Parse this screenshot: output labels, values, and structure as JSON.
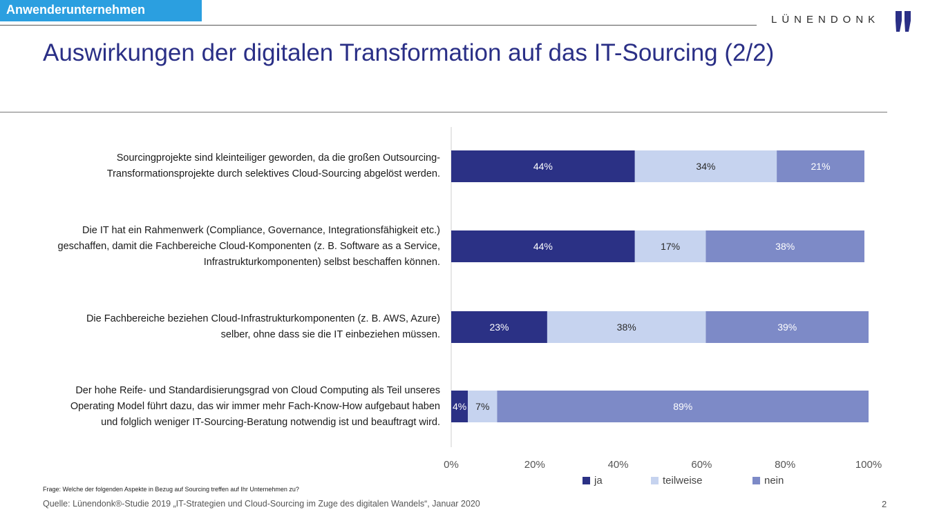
{
  "header": {
    "section_tag": "Anwenderunternehmen",
    "brand": "LÜNENDONK",
    "title": "Auswirkungen der digitalen Transformation auf das IT-Sourcing (2/2)"
  },
  "colors": {
    "ja": "#2b3185",
    "teilweise": "#c6d3ef",
    "nein": "#7d8ac7",
    "tag": "#2b9fe0",
    "title": "#2a2f86"
  },
  "chart_data": {
    "type": "bar",
    "orientation": "horizontal",
    "stacked": true,
    "categories": [
      "Sourcingprojekte sind kleinteiliger geworden, da die großen Outsourcing-\nTransformationsprojekte durch selektives Cloud-Sourcing abgelöst werden.",
      "Die IT hat ein Rahmenwerk (Compliance, Governance, Integrationsfähigkeit etc.)\ngeschaffen, damit die Fachbereiche Cloud-Komponenten (z. B. Software as a Service,\nInfrastrukturkomponenten) selbst beschaffen können.",
      "Die Fachbereiche beziehen Cloud-Infrastrukturkomponenten (z. B. AWS, Azure)\nselber, ohne dass sie die IT einbeziehen müssen.",
      "Der hohe Reife- und Standardisierungsgrad von Cloud Computing als Teil unseres\nOperating Model führt dazu, das wir immer mehr Fach-Know-How aufgebaut haben\nund folglich weniger IT-Sourcing-Beratung notwendig ist und beauftragt wird."
    ],
    "series": [
      {
        "name": "ja",
        "values": [
          44,
          44,
          23,
          4
        ]
      },
      {
        "name": "teilweise",
        "values": [
          34,
          17,
          38,
          7
        ]
      },
      {
        "name": "nein",
        "values": [
          21,
          38,
          39,
          89
        ]
      }
    ],
    "xlim": [
      0,
      100
    ],
    "x_ticks": [
      "0%",
      "20%",
      "40%",
      "60%",
      "80%",
      "100%"
    ],
    "value_suffix": "%",
    "legend": "bottom",
    "grid": false
  },
  "footer": {
    "question": "Frage: Welche der folgenden Aspekte in Bezug auf Sourcing treffen auf Ihr Unternehmen zu?",
    "source": "Quelle: Lünendonk®-Studie 2019 „IT-Strategien und Cloud-Sourcing im Zuge des digitalen Wandels“, Januar 2020",
    "page": "2"
  }
}
